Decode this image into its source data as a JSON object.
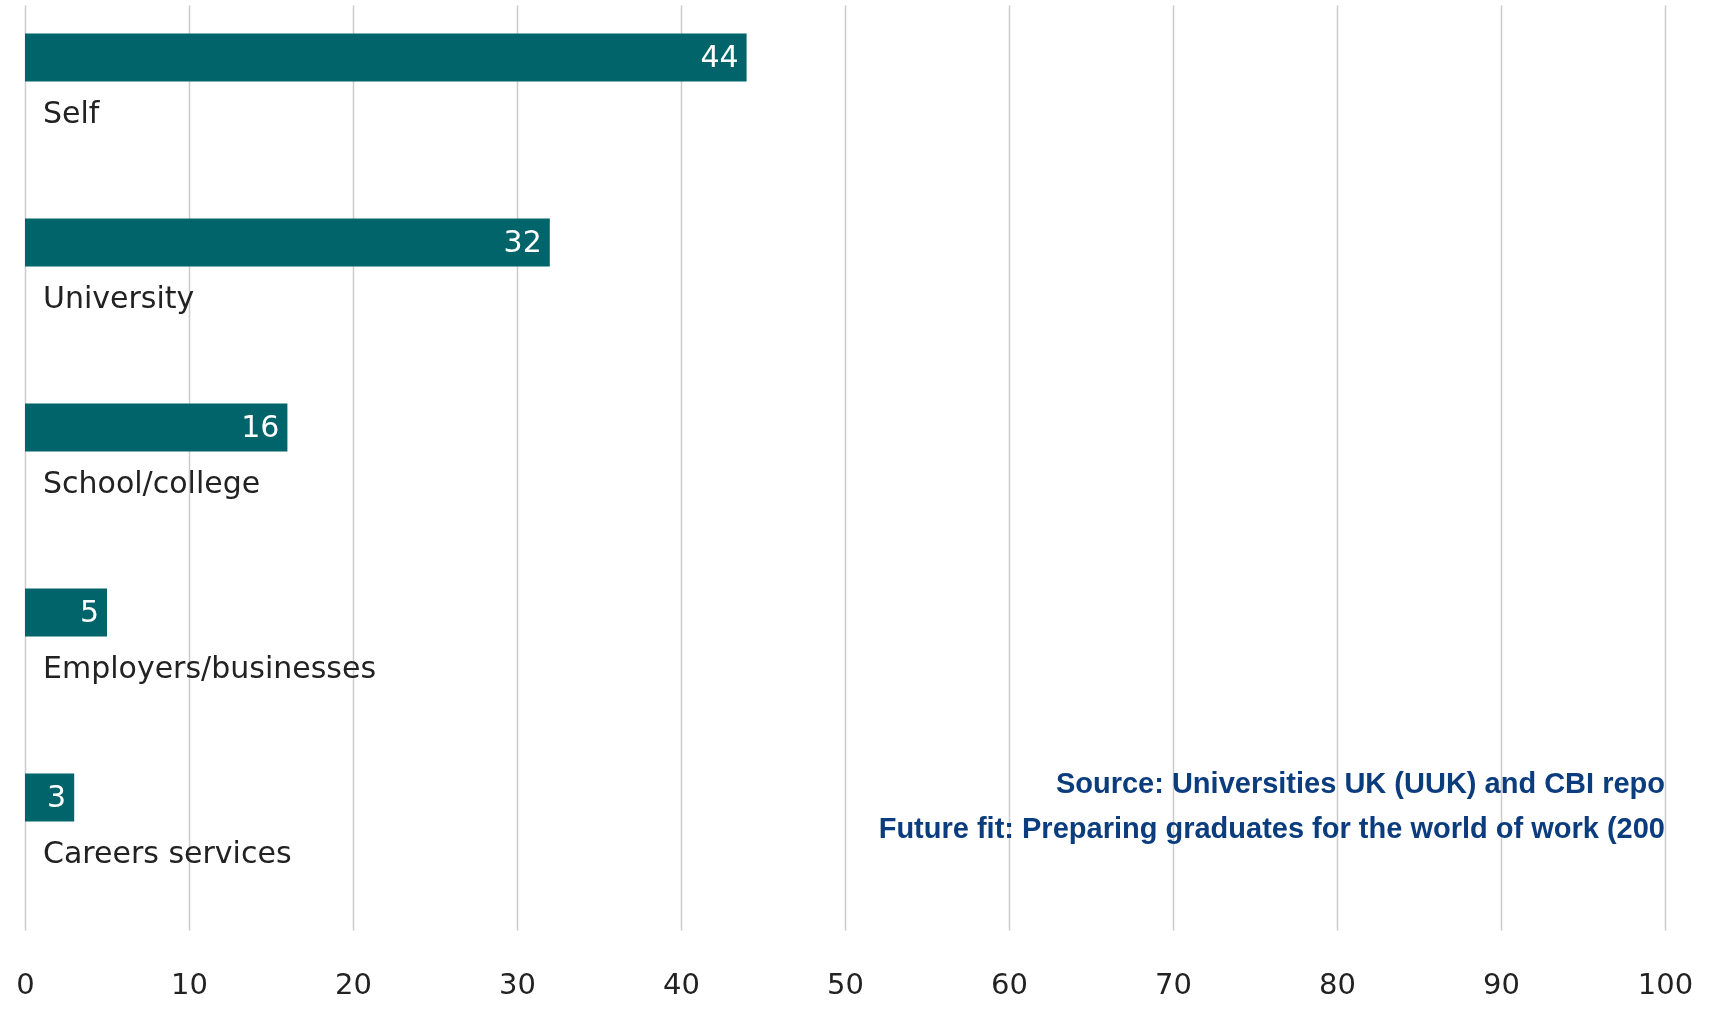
{
  "chart_data": {
    "type": "bar",
    "orientation": "horizontal",
    "categories": [
      "Self",
      "University",
      "School/college",
      "Employers/businesses",
      "Careers services"
    ],
    "values": [
      44,
      32,
      16,
      5,
      3
    ],
    "color": "#00646a",
    "data_labels": true,
    "xlim": [
      0,
      100
    ],
    "xticks": [
      0,
      10,
      20,
      30,
      40,
      50,
      60,
      70,
      80,
      90,
      100
    ],
    "grid": "x",
    "annotations": [
      "Source: Universities UK (UUK) and CBI repo",
      "Future fit: Preparing graduates for the world of work (200"
    ]
  }
}
